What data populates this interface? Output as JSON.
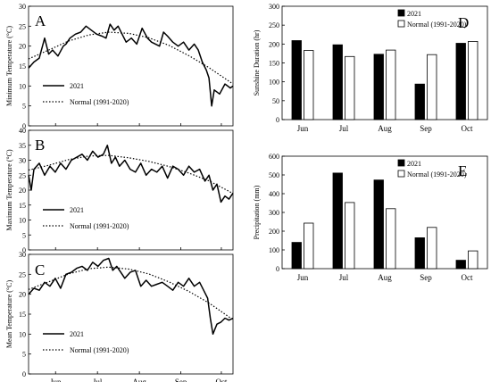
{
  "chart_data": [
    {
      "panel": "A",
      "type": "line",
      "ylabel": "Minimum Temperature (°C)",
      "ylim": [
        0,
        30
      ],
      "y_ticks": [
        0,
        5,
        10,
        15,
        20,
        25,
        30
      ],
      "x_ticks": [
        "Jun",
        "Jul",
        "Aug",
        "Sep",
        "Oct"
      ],
      "legend_position": "bottom-left",
      "series": [
        {
          "name": "2021",
          "style": "solid",
          "x": [
            0,
            4,
            8,
            12,
            15,
            18,
            22,
            26,
            28,
            31,
            35,
            39,
            43,
            47,
            51,
            55,
            58,
            61,
            64,
            67,
            70,
            73,
            77,
            81,
            85,
            89,
            92,
            95,
            98,
            101,
            104,
            108,
            112,
            116,
            120,
            124,
            127,
            130,
            133,
            135,
            137,
            139,
            143,
            147,
            151,
            153
          ],
          "y": [
            14.5,
            16,
            17,
            22,
            18,
            19,
            17.5,
            20,
            20.5,
            22,
            23,
            23.5,
            25,
            24,
            23,
            22.5,
            22,
            25.5,
            24,
            25,
            23,
            21,
            22,
            20.5,
            24.5,
            22,
            21,
            20.5,
            20,
            23.5,
            22.5,
            21,
            20,
            21,
            19,
            20.5,
            19,
            16,
            14,
            12,
            5,
            9,
            8,
            10.5,
            9.5,
            10
          ]
        },
        {
          "name": "Normal (1991-2020)",
          "style": "dotted",
          "x": [
            0,
            15,
            30,
            45,
            60,
            75,
            90,
            105,
            120,
            135,
            150,
            153
          ],
          "y": [
            16.8,
            19,
            21.3,
            22.8,
            23.5,
            23.2,
            22.1,
            20.2,
            17.6,
            14.6,
            11.2,
            10.5
          ]
        }
      ]
    },
    {
      "panel": "B",
      "type": "line",
      "ylabel": "Maximum Temperature (°C)",
      "ylim": [
        0,
        40
      ],
      "y_ticks": [
        0,
        5,
        10,
        15,
        20,
        25,
        30,
        35,
        40
      ],
      "x_ticks": [
        "Jun",
        "Jul",
        "Aug",
        "Sep",
        "Oct"
      ],
      "legend_position": "bottom-left",
      "series": [
        {
          "name": "2021",
          "style": "solid",
          "x": [
            0,
            2,
            4,
            8,
            12,
            16,
            20,
            24,
            28,
            32,
            36,
            40,
            44,
            48,
            52,
            56,
            59,
            62,
            65,
            68,
            72,
            76,
            80,
            84,
            88,
            92,
            96,
            100,
            104,
            108,
            112,
            116,
            120,
            124,
            128,
            132,
            135,
            138,
            141,
            144,
            147,
            150,
            153
          ],
          "y": [
            25,
            20,
            27,
            29,
            25,
            28,
            26,
            29,
            27,
            30,
            31,
            32,
            30,
            33,
            31,
            32,
            35,
            29,
            31,
            28,
            30,
            27,
            26,
            29,
            25,
            27,
            26,
            28,
            24,
            28,
            27,
            25,
            28,
            26,
            27,
            23,
            25,
            20,
            22,
            16,
            18,
            17,
            19
          ]
        },
        {
          "name": "Normal (1991-2020)",
          "style": "dotted",
          "x": [
            0,
            15,
            30,
            45,
            60,
            75,
            90,
            105,
            120,
            135,
            150,
            153
          ],
          "y": [
            26.7,
            28.3,
            30.2,
            31.4,
            31.6,
            30.8,
            29.6,
            27.9,
            25.7,
            23.1,
            19.6,
            18.8
          ]
        }
      ]
    },
    {
      "panel": "C",
      "type": "line",
      "ylabel": "Mean Temperature (°C)",
      "ylim": [
        0,
        30
      ],
      "y_ticks": [
        0,
        5,
        10,
        15,
        20,
        25,
        30
      ],
      "x_ticks": [
        "Jun",
        "Jul",
        "Aug",
        "Sep",
        "Oct"
      ],
      "legend_position": "bottom-left",
      "series": [
        {
          "name": "2021",
          "style": "solid",
          "x": [
            0,
            4,
            8,
            12,
            16,
            20,
            24,
            28,
            32,
            36,
            40,
            44,
            48,
            52,
            56,
            60,
            63,
            66,
            69,
            72,
            76,
            80,
            84,
            88,
            92,
            96,
            100,
            104,
            108,
            112,
            116,
            120,
            124,
            128,
            131,
            134,
            136,
            138,
            141,
            144,
            147,
            150,
            153
          ],
          "y": [
            20,
            21.5,
            21,
            23,
            22,
            24,
            21.5,
            25,
            25.5,
            26.5,
            27,
            26,
            28,
            27,
            28.5,
            29,
            26,
            27,
            25.5,
            24,
            25.5,
            26,
            22,
            23.5,
            22,
            22.5,
            23,
            22,
            21,
            23,
            22,
            24,
            22,
            23,
            21,
            19,
            14,
            10,
            12.5,
            13,
            14,
            13.5,
            14
          ]
        },
        {
          "name": "Normal (1991-2020)",
          "style": "dotted",
          "x": [
            0,
            15,
            30,
            45,
            60,
            75,
            90,
            105,
            120,
            135,
            150,
            153
          ],
          "y": [
            21.2,
            23.1,
            25.1,
            26.4,
            26.8,
            26.3,
            25.1,
            23.1,
            20.7,
            17.8,
            14.3,
            13.6
          ]
        }
      ]
    },
    {
      "panel": "D",
      "type": "bar",
      "ylabel": "Sunshine Duration (hr)",
      "ylim": [
        0,
        300
      ],
      "y_ticks": [
        0,
        50,
        100,
        150,
        200,
        250,
        300
      ],
      "categories": [
        "Jun",
        "Jul",
        "Aug",
        "Sep",
        "Oct"
      ],
      "legend_position": "top-right",
      "series": [
        {
          "name": "2021",
          "fill": "#000000",
          "values": [
            209,
            198,
            173,
            94,
            202
          ]
        },
        {
          "name": "Normal (1991-2020)",
          "fill": "#ffffff",
          "values": [
            183,
            167,
            184,
            172,
            207
          ]
        }
      ]
    },
    {
      "panel": "E",
      "type": "bar",
      "ylabel": "Precipitation (mm)",
      "ylim": [
        0,
        600
      ],
      "y_ticks": [
        0,
        100,
        200,
        300,
        400,
        500,
        600
      ],
      "categories": [
        "Jun",
        "Jul",
        "Aug",
        "Sep",
        "Oct"
      ],
      "legend_position": "top-right",
      "series": [
        {
          "name": "2021",
          "fill": "#000000",
          "values": [
            140,
            510,
            473,
            165,
            45
          ]
        },
        {
          "name": "Normal (1991-2020)",
          "fill": "#ffffff",
          "values": [
            243,
            353,
            320,
            220,
            95
          ]
        }
      ]
    }
  ]
}
